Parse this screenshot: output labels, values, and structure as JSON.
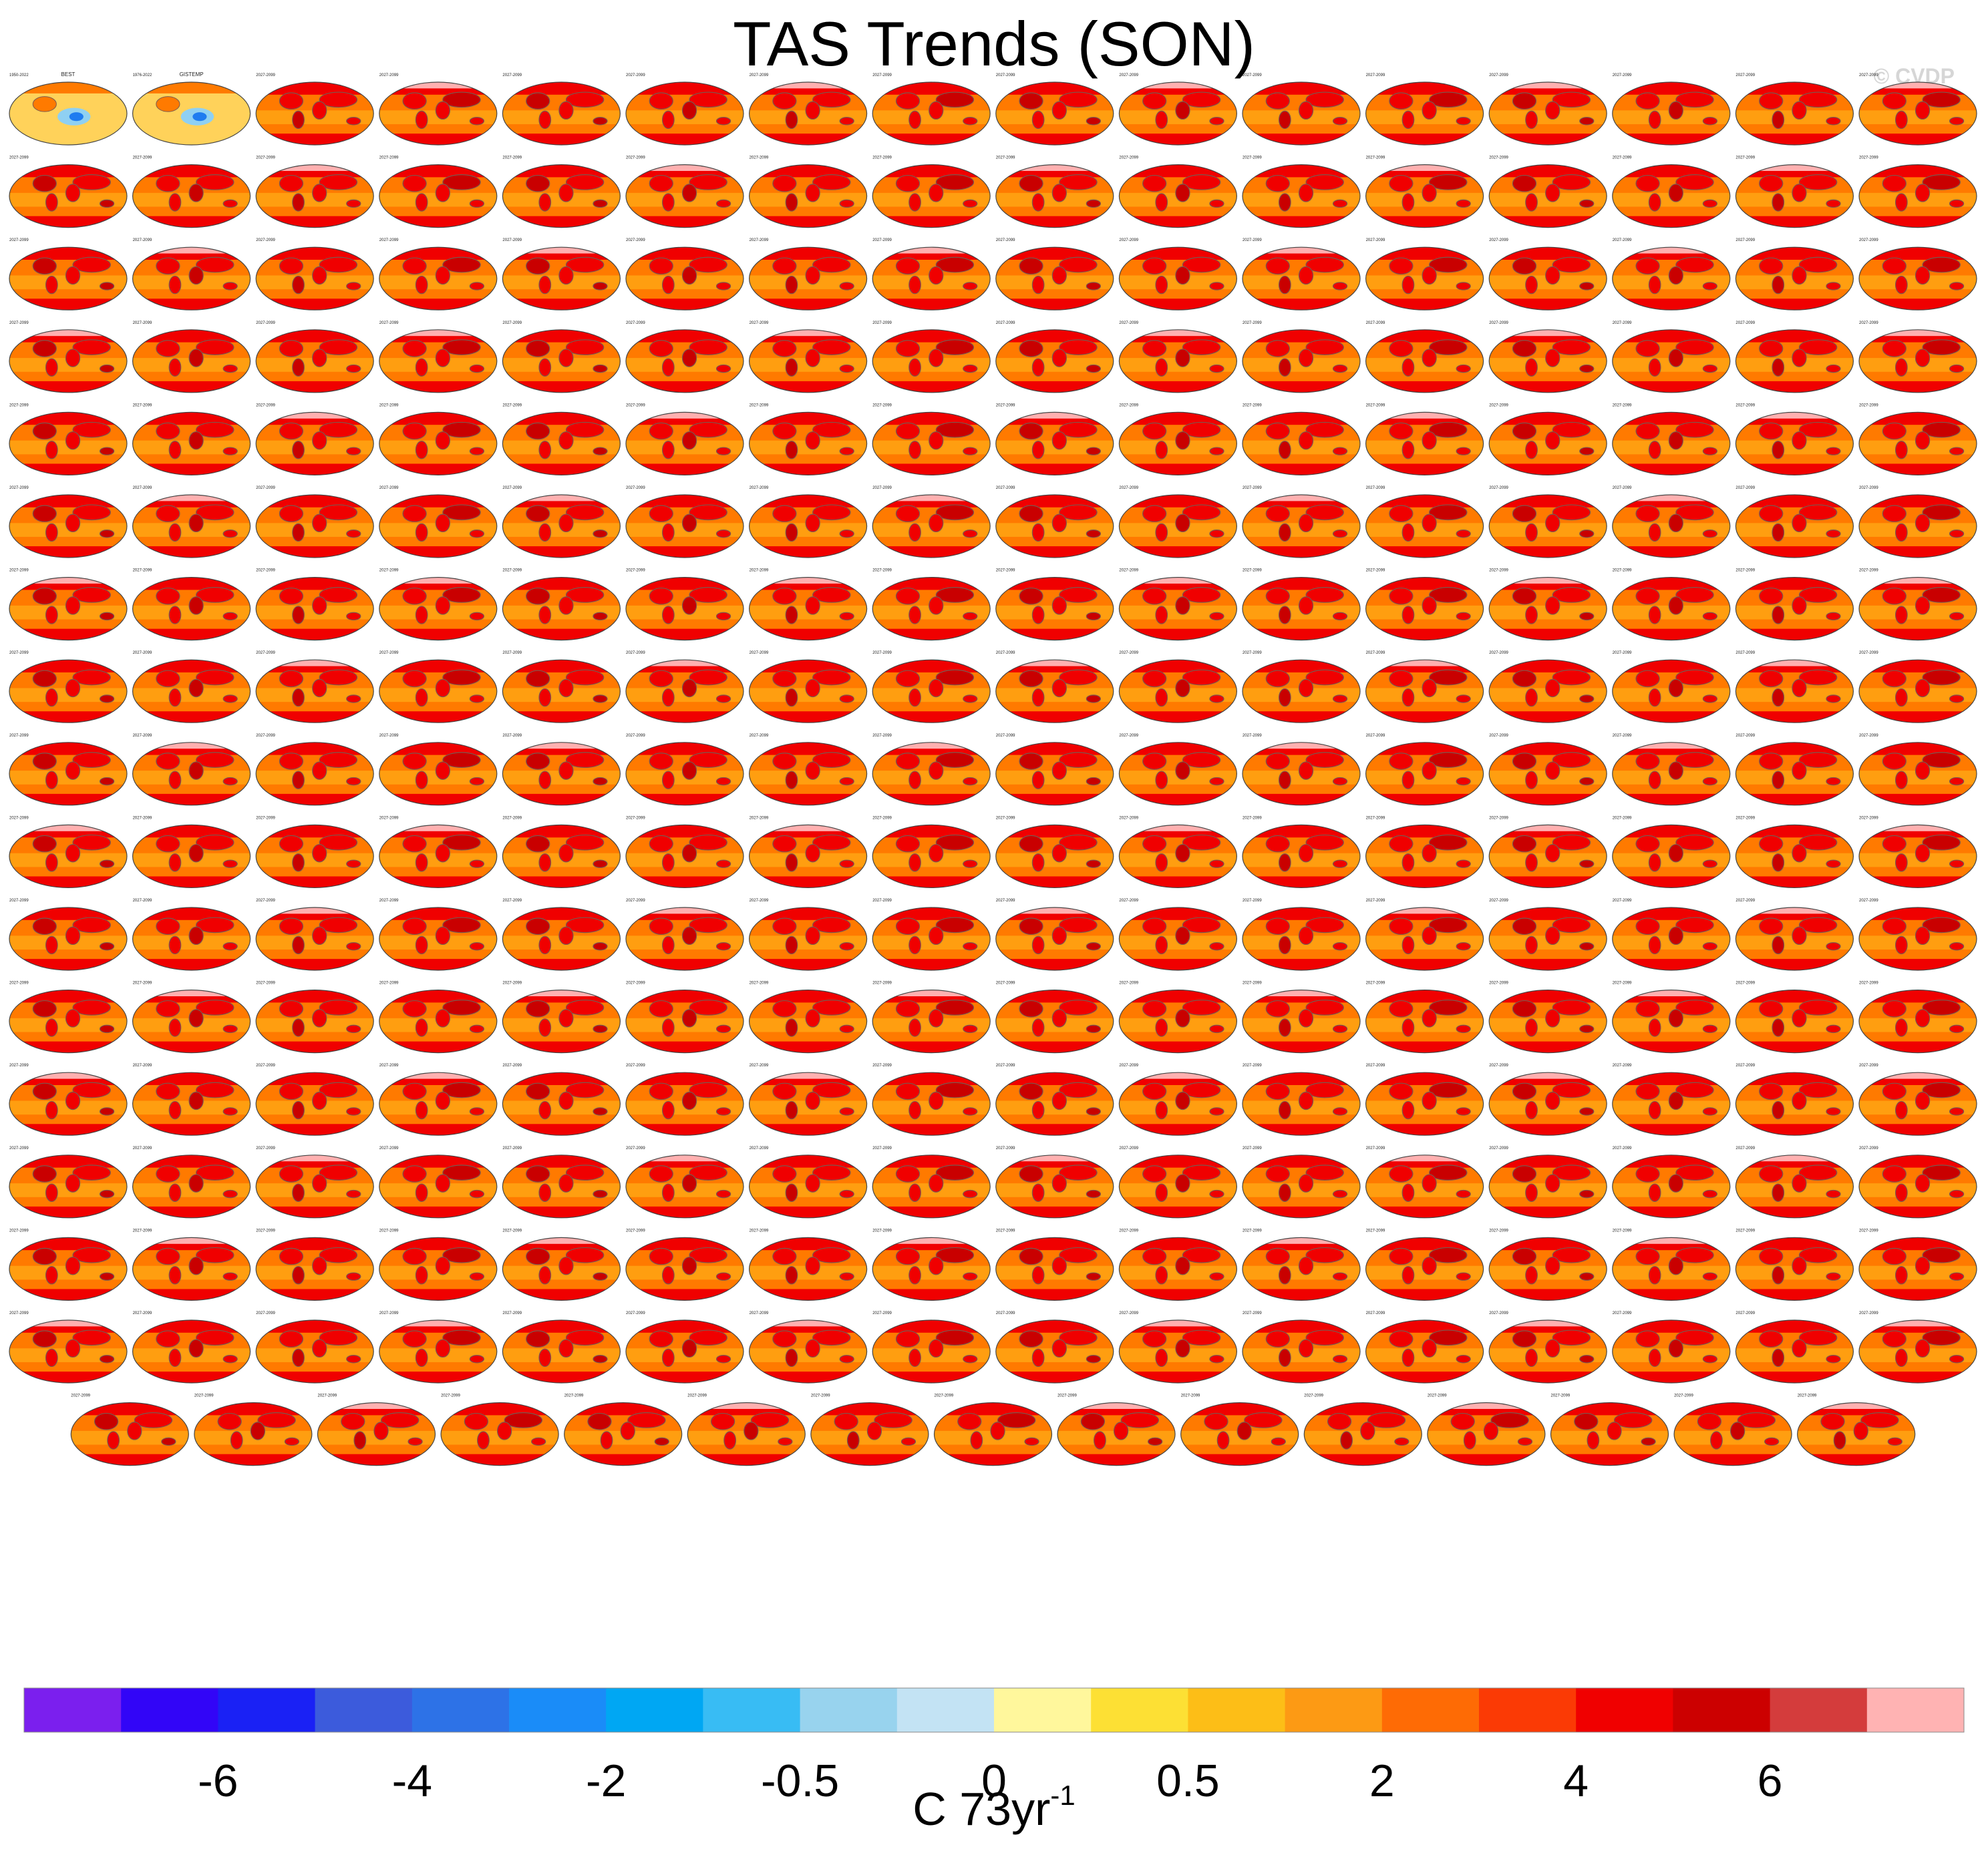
{
  "title": "TAS Trends (SON)",
  "credit": "© CVDP",
  "unit_label": {
    "base": "C 73yr",
    "exponent": "-1"
  },
  "colors": {
    "ocean_warm": "#ff7a00",
    "ocean_mid": "#ff9e10",
    "land_hot": "#f00000",
    "land_dark": "#c90000",
    "arctic_light": "#ffb0b0",
    "continent_outline": "#7a5a50",
    "obs_background": "#ffd25a",
    "obs_cool": "#8fd0f2",
    "obs_cold": "#1f7cf0"
  },
  "panels": {
    "observations": [
      {
        "name": "BEST",
        "period": "1950-2022"
      },
      {
        "name": "GISTEMP",
        "period": "1976-2022"
      }
    ],
    "grid_rows": 17,
    "grid_cols": 16,
    "last_row_count": 15,
    "model_period": "2027-2099"
  },
  "chart_data": {
    "type": "heatmap",
    "title": "TAS Trends (SON)",
    "colorbar": {
      "levels": [
        -7,
        -6,
        -5,
        -4,
        -3,
        -2,
        -1,
        -0.5,
        -0.2,
        0,
        0.2,
        0.5,
        1,
        2,
        3,
        4,
        5,
        6,
        7
      ],
      "tick_labels": [
        "-6",
        "-4",
        "-2",
        "-0.5",
        "0",
        "0.5",
        "2",
        "4",
        "6"
      ],
      "colors": [
        "#7b1fee",
        "#3205f7",
        "#1a21f5",
        "#3c5bdc",
        "#2d72e7",
        "#1a8cf8",
        "#00a7f3",
        "#38bcf4",
        "#98d3ee",
        "#c3e3f4",
        "#fff79c",
        "#fde034",
        "#fdbe17",
        "#fd9a14",
        "#fe6b05",
        "#fb3a05",
        "#f00000",
        "#cc0000",
        "#d43c3c",
        "#ffb3b3"
      ],
      "units": "C 73yr-1"
    }
  }
}
